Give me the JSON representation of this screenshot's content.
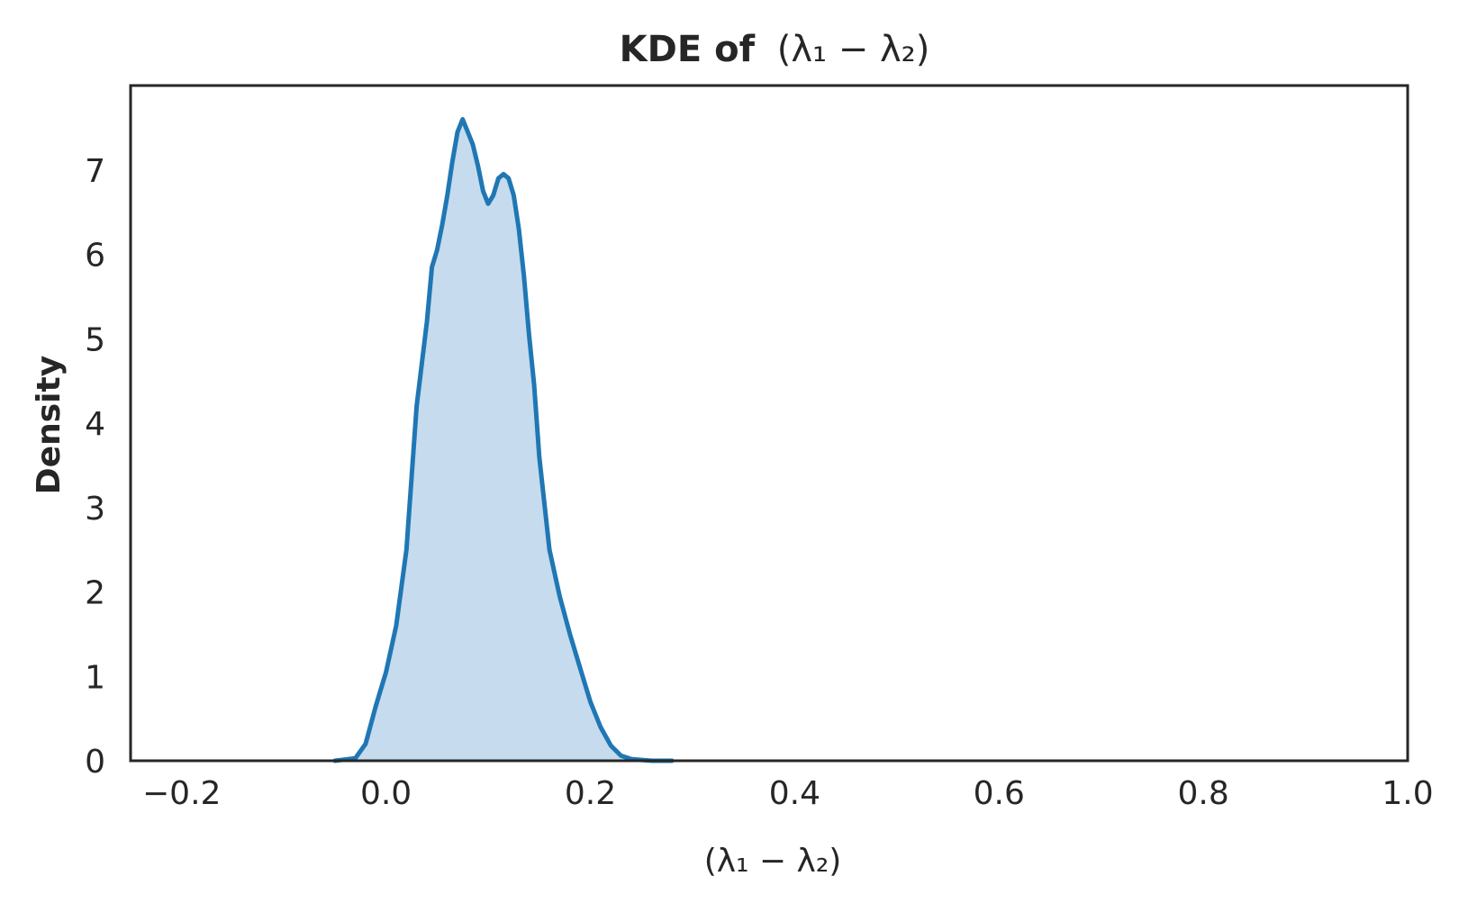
{
  "chart_data": {
    "type": "area",
    "title_bold": "KDE of",
    "title_math": "(λ₁ − λ₂)",
    "xlabel": "(λ₁ − λ₂)",
    "ylabel": "Density",
    "xlim": [
      -0.25,
      1.0
    ],
    "ylim": [
      0,
      8.0
    ],
    "xticks": [
      -0.2,
      0.0,
      0.2,
      0.4,
      0.6,
      0.8,
      1.0
    ],
    "xtick_labels": [
      "−0.2",
      "0.0",
      "0.2",
      "0.4",
      "0.6",
      "0.8",
      "1.0"
    ],
    "yticks": [
      0,
      1,
      2,
      3,
      4,
      5,
      6,
      7
    ],
    "ytick_labels": [
      "0",
      "1",
      "2",
      "3",
      "4",
      "5",
      "6",
      "7"
    ],
    "grid": false,
    "line_color": "#1f77b4",
    "fill_color": "#c6dbed",
    "series": [
      {
        "x": [
          -0.05,
          -0.03,
          -0.02,
          -0.01,
          0.0,
          0.01,
          0.02,
          0.03,
          0.04,
          0.045,
          0.05,
          0.055,
          0.06,
          0.065,
          0.07,
          0.075,
          0.08,
          0.085,
          0.09,
          0.095,
          0.1,
          0.105,
          0.11,
          0.115,
          0.12,
          0.125,
          0.13,
          0.135,
          0.14,
          0.145,
          0.15,
          0.16,
          0.17,
          0.18,
          0.19,
          0.2,
          0.21,
          0.22,
          0.23,
          0.24,
          0.25,
          0.26,
          0.28
        ],
        "y": [
          0.0,
          0.03,
          0.2,
          0.65,
          1.05,
          1.6,
          2.5,
          4.2,
          5.2,
          5.85,
          6.05,
          6.35,
          6.7,
          7.1,
          7.45,
          7.6,
          7.45,
          7.3,
          7.05,
          6.75,
          6.6,
          6.7,
          6.9,
          6.95,
          6.9,
          6.7,
          6.3,
          5.75,
          5.05,
          4.45,
          3.6,
          2.5,
          1.95,
          1.5,
          1.1,
          0.7,
          0.4,
          0.18,
          0.06,
          0.02,
          0.01,
          0.0,
          0.0
        ]
      }
    ]
  }
}
